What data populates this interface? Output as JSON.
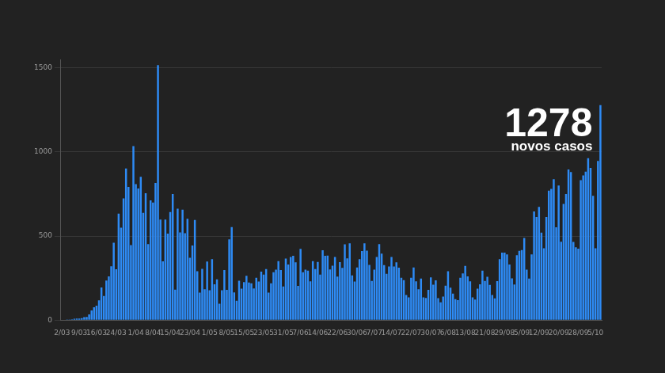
{
  "chart_data": {
    "type": "bar",
    "categories": [
      "2/03",
      null,
      null,
      null,
      null,
      null,
      null,
      "9/03",
      null,
      null,
      null,
      null,
      null,
      null,
      "16/03",
      null,
      null,
      null,
      null,
      null,
      null,
      null,
      "24/03",
      null,
      null,
      null,
      null,
      null,
      null,
      null,
      "1/04",
      null,
      null,
      null,
      null,
      null,
      null,
      "8/04",
      null,
      null,
      null,
      null,
      null,
      null,
      "15/04",
      null,
      null,
      null,
      null,
      null,
      null,
      null,
      "23/04",
      null,
      null,
      null,
      null,
      null,
      null,
      null,
      "1/05",
      null,
      null,
      null,
      null,
      null,
      null,
      "8/05",
      null,
      null,
      null,
      null,
      null,
      null,
      "15/05",
      null,
      null,
      null,
      null,
      null,
      null,
      null,
      "23/05",
      null,
      null,
      null,
      null,
      null,
      null,
      null,
      "31/05",
      null,
      null,
      null,
      null,
      null,
      null,
      "7/06",
      null,
      null,
      null,
      null,
      null,
      null,
      "14/06",
      null,
      null,
      null,
      null,
      null,
      null,
      null,
      "22/06",
      null,
      null,
      null,
      null,
      null,
      null,
      null,
      "30/06",
      null,
      null,
      null,
      null,
      null,
      null,
      "7/07",
      null,
      null,
      null,
      null,
      null,
      null,
      "14/07",
      null,
      null,
      null,
      null,
      null,
      null,
      null,
      "22/07",
      null,
      null,
      null,
      null,
      null,
      null,
      null,
      "30/07",
      null,
      null,
      null,
      null,
      null,
      null,
      "6/08",
      null,
      null,
      null,
      null,
      null,
      null,
      "13/08",
      null,
      null,
      null,
      null,
      null,
      null,
      null,
      "21/08",
      null,
      null,
      null,
      null,
      null,
      null,
      null,
      "29/08",
      null,
      null,
      null,
      null,
      null,
      null,
      "5/09",
      null,
      null,
      null,
      null,
      null,
      null,
      "12/09",
      null,
      null,
      null,
      null,
      null,
      null,
      null,
      "20/09",
      null,
      null,
      null,
      null,
      null,
      null,
      null,
      "28/09",
      null,
      null,
      null,
      null,
      null,
      null,
      "5/10",
      null,
      null
    ],
    "values": [
      2,
      2,
      1,
      3,
      4,
      8,
      9,
      9,
      11,
      18,
      19,
      34,
      57,
      76,
      86,
      117,
      194,
      143,
      235,
      260,
      320,
      460,
      302,
      633,
      549,
      724,
      902,
      792,
      446,
      1035,
      808,
      783,
      852,
      638,
      754,
      452,
      712,
      699,
      815,
      1516,
      598,
      349,
      598,
      514,
      643,
      750,
      181,
      663,
      521,
      657,
      516,
      603,
      371,
      444,
      595,
      290,
      163,
      305,
      183,
      348,
      178,
      362,
      213,
      242,
      98,
      178,
      298,
      180,
      480,
      553,
      164,
      115,
      234,
      187,
      226,
      264,
      223,
      219,
      188,
      252,
      229,
      288,
      271,
      304,
      163,
      219,
      285,
      300,
      350,
      298,
      200,
      366,
      331,
      375,
      382,
      343,
      203,
      424,
      285,
      300,
      294,
      230,
      350,
      304,
      346,
      270,
      415,
      382,
      383,
      301,
      323,
      375,
      259,
      345,
      311,
      451,
      367,
      457,
      266,
      229,
      313,
      362,
      410,
      456,
      413,
      328,
      233,
      300,
      375,
      452,
      395,
      327,
      275,
      319,
      375,
      319,
      343,
      312,
      252,
      238,
      149,
      135,
      252,
      313,
      230,
      183,
      247,
      135,
      132,
      180,
      254,
      210,
      236,
      130,
      106,
      140,
      205,
      290,
      193,
      158,
      125,
      119,
      252,
      278,
      322,
      260,
      230,
      135,
      122,
      187,
      213,
      294,
      233,
      257,
      209,
      149,
      129,
      232,
      362,
      401,
      401,
      390,
      330,
      248,
      212,
      386,
      412,
      416,
      488,
      300,
      247,
      390,
      646,
      613,
      673,
      520,
      427,
      613,
      770,
      780,
      838,
      552,
      800,
      466,
      691,
      750,
      896,
      880,
      465,
      433,
      425,
      832,
      860,
      883,
      963,
      905,
      739,
      427,
      946,
      1278
    ],
    "color": "#2e8bf5",
    "ylim": [
      0,
      1550
    ],
    "yticks": [
      0,
      500,
      1000,
      1500
    ],
    "grid": true,
    "annotations": [
      "1278",
      "novos casos"
    ]
  }
}
